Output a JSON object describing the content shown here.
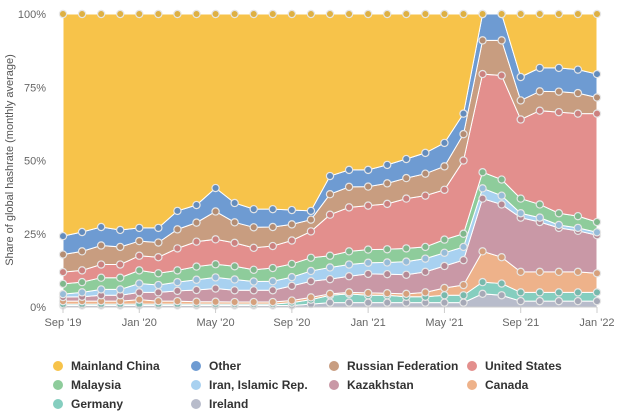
{
  "chart_data": {
    "type": "area",
    "stacked": true,
    "ylabel": "Share of global hashrate (monthly average)",
    "xlabel": "",
    "ylim": [
      0,
      100
    ],
    "y_ticks": [
      "0%",
      "25%",
      "50%",
      "75%",
      "100%"
    ],
    "x_ticks": [
      {
        "label": "Sep '19",
        "index": 0
      },
      {
        "label": "Jan '20",
        "index": 4
      },
      {
        "label": "May '20",
        "index": 8
      },
      {
        "label": "Sep '20",
        "index": 12
      },
      {
        "label": "Jan '21",
        "index": 16
      },
      {
        "label": "May '21",
        "index": 20
      },
      {
        "label": "Sep '21",
        "index": 24
      },
      {
        "label": "Jan '22",
        "index": 28
      }
    ],
    "x": [
      "2019-09",
      "2019-10",
      "2019-11",
      "2019-12",
      "2020-01",
      "2020-02",
      "2020-03",
      "2020-04",
      "2020-05",
      "2020-06",
      "2020-07",
      "2020-08",
      "2020-09",
      "2020-10",
      "2020-11",
      "2020-12",
      "2021-01",
      "2021-02",
      "2021-03",
      "2021-04",
      "2021-05",
      "2021-06",
      "2021-07",
      "2021-08",
      "2021-09",
      "2021-10",
      "2021-11",
      "2021-12",
      "2022-01"
    ],
    "legend_position": "bottom",
    "series": [
      {
        "name": "Ireland",
        "color": "#b8bccb",
        "values": [
          0.5,
          0.5,
          0.5,
          0.5,
          0.5,
          0.5,
          0.5,
          0.5,
          0.5,
          0.5,
          0.5,
          0.5,
          0.5,
          1,
          1.5,
          1.5,
          1.5,
          1.5,
          1.5,
          1.5,
          1.5,
          1.5,
          4.5,
          4,
          2,
          2,
          2,
          2,
          2
        ]
      },
      {
        "name": "Germany",
        "color": "#85cebf",
        "values": [
          0.5,
          0.5,
          0.5,
          0.5,
          0.5,
          0.5,
          0.5,
          0.5,
          0.5,
          0.5,
          0.5,
          0.5,
          1,
          1.5,
          2.5,
          3,
          2.5,
          2.5,
          2,
          2,
          2.5,
          2.5,
          4,
          4,
          3,
          3,
          3,
          3,
          3
        ]
      },
      {
        "name": "Canada",
        "color": "#eeb28a",
        "values": [
          1,
          1,
          1,
          1,
          1.5,
          1,
          1,
          0.8,
          0.8,
          0.7,
          0.7,
          0.7,
          0.7,
          0.8,
          0.5,
          0.5,
          0.8,
          0.7,
          1,
          1.5,
          2.5,
          3.5,
          10.5,
          9,
          7,
          7,
          7,
          7,
          6.5
        ]
      },
      {
        "name": "Kazakhstan",
        "color": "#c998a6",
        "values": [
          1.4,
          1.5,
          2,
          2,
          2.5,
          3,
          3.5,
          4,
          4.5,
          4,
          4,
          4,
          5,
          5.5,
          5,
          5.5,
          6.5,
          6.5,
          6.5,
          7,
          7.5,
          8.5,
          18,
          18,
          18.5,
          17,
          15,
          14,
          13
        ]
      },
      {
        "name": "Iran, Islamic Rep.",
        "color": "#a8d1f0",
        "values": [
          1,
          1.5,
          2,
          2,
          3,
          2.5,
          3,
          3.5,
          3.8,
          3.7,
          3,
          3.1,
          3,
          3.5,
          4,
          4,
          3.8,
          4,
          4.5,
          4.5,
          4.5,
          4.5,
          3.5,
          3,
          1.5,
          1.5,
          1,
          1,
          1
        ]
      },
      {
        "name": "Malaysia",
        "color": "#8ecc9b",
        "values": [
          3.5,
          3.5,
          4,
          4,
          4.5,
          4,
          4,
          4.5,
          4.5,
          4.5,
          4,
          4.5,
          4.5,
          4.5,
          4,
          4.5,
          4.5,
          4.5,
          4.5,
          4,
          4.5,
          4.5,
          5.5,
          5.5,
          5,
          4.5,
          4,
          4,
          3.5
        ]
      },
      {
        "name": "United States",
        "color": "#e38f8d",
        "values": [
          4,
          4,
          4.5,
          4.5,
          5,
          5.5,
          7.5,
          8.5,
          8.5,
          8,
          7.5,
          7.5,
          8,
          9,
          14,
          15,
          15,
          15.5,
          17,
          17.5,
          17,
          25,
          33.5,
          35.5,
          27,
          32,
          34.5,
          35,
          37
        ]
      },
      {
        "name": "Russian Federation",
        "color": "#c89d80",
        "values": [
          6,
          6.5,
          6.5,
          6,
          5,
          5,
          6.5,
          6.5,
          9.5,
          7,
          7,
          6.5,
          5.5,
          4,
          7,
          7,
          6.5,
          7,
          7,
          7.5,
          8,
          9,
          11.5,
          12,
          6.5,
          6.6,
          7,
          7,
          5.5
        ]
      },
      {
        "name": "Other",
        "color": "#6e9bd2",
        "values": [
          6.3,
          6.6,
          6.3,
          5.8,
          4.5,
          5,
          6.3,
          6,
          8,
          6.6,
          6.2,
          6.1,
          4.9,
          3,
          6.2,
          5.8,
          5.7,
          6.3,
          6.5,
          7.1,
          8,
          7,
          9,
          9,
          8,
          8,
          8.1,
          8,
          8
        ]
      },
      {
        "name": "Mainland China",
        "color": "#f7c34a",
        "values": [
          75.8,
          74.4,
          72.7,
          73.7,
          73,
          73,
          67.2,
          65.2,
          59.4,
          64.5,
          66.6,
          66.6,
          66.9,
          67.2,
          55.3,
          53.2,
          53.2,
          51.5,
          49.5,
          47.4,
          44,
          34,
          0,
          0,
          21.5,
          18.4,
          18.4,
          19,
          20.5
        ]
      }
    ]
  },
  "legend": [
    {
      "label": "Mainland China",
      "color": "#f7c34a"
    },
    {
      "label": "Other",
      "color": "#6e9bd2"
    },
    {
      "label": "Russian Federation",
      "color": "#c89d80"
    },
    {
      "label": "United States",
      "color": "#e38f8d"
    },
    {
      "label": "Malaysia",
      "color": "#8ecc9b"
    },
    {
      "label": "Iran, Islamic Rep.",
      "color": "#a8d1f0"
    },
    {
      "label": "Kazakhstan",
      "color": "#c998a6"
    },
    {
      "label": "Canada",
      "color": "#eeb28a"
    },
    {
      "label": "Germany",
      "color": "#85cebf"
    },
    {
      "label": "Ireland",
      "color": "#b8bccb"
    }
  ]
}
